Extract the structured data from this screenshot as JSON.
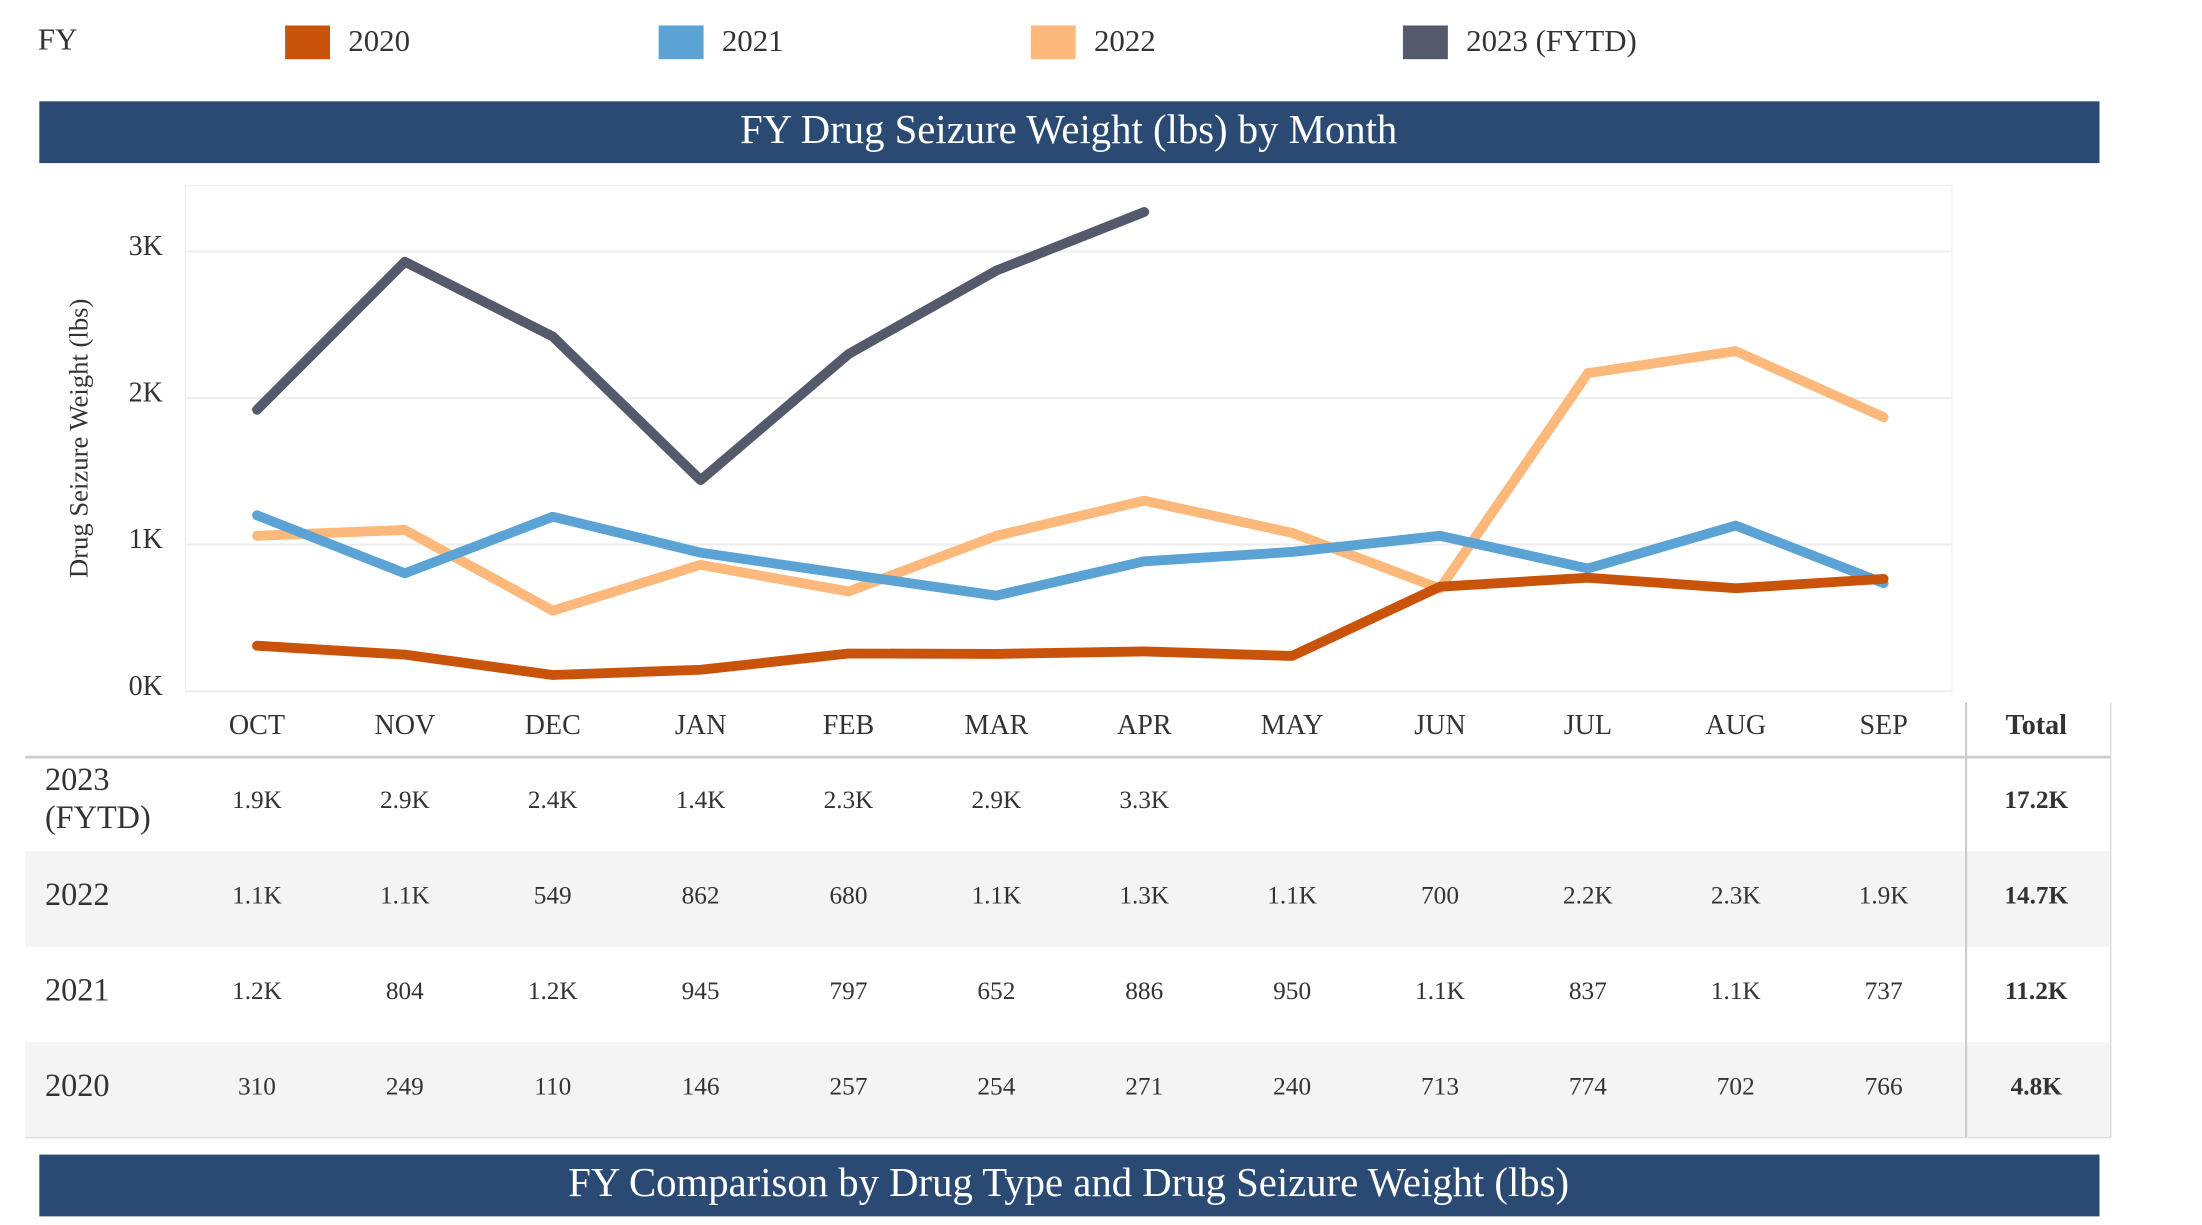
{
  "chart_data": {
    "type": "line",
    "title": "FY Drug Seizure Weight (lbs) by Month",
    "legend_title": "FY",
    "y_label": "Drug Seizure Weight (lbs)",
    "categories": [
      "OCT",
      "NOV",
      "DEC",
      "JAN",
      "FEB",
      "MAR",
      "APR",
      "MAY",
      "JUN",
      "JUL",
      "AUG",
      "SEP"
    ],
    "ylim": [
      0,
      3450
    ],
    "yticks": [
      {
        "value": 0,
        "label": "0K"
      },
      {
        "value": 1000,
        "label": "1K"
      },
      {
        "value": 2000,
        "label": "2K"
      },
      {
        "value": 3000,
        "label": "3K"
      }
    ],
    "grid": true,
    "total_label": "Total",
    "series": [
      {
        "name": "2020",
        "color": "#c9530b",
        "values": [
          310,
          249,
          110,
          146,
          257,
          254,
          271,
          240,
          713,
          774,
          702,
          766
        ],
        "value_labels": [
          "310",
          "249",
          "110",
          "146",
          "257",
          "254",
          "271",
          "240",
          "713",
          "774",
          "702",
          "766"
        ],
        "total": "4.8K"
      },
      {
        "name": "2021",
        "color": "#5ba3d5",
        "values": [
          1200,
          804,
          1190,
          945,
          797,
          652,
          886,
          950,
          1060,
          837,
          1130,
          737
        ],
        "value_labels": [
          "1.2K",
          "804",
          "1.2K",
          "945",
          "797",
          "652",
          "886",
          "950",
          "1.1K",
          "837",
          "1.1K",
          "737"
        ],
        "total": "11.2K"
      },
      {
        "name": "2022",
        "color": "#fdb97c",
        "values": [
          1060,
          1100,
          549,
          862,
          680,
          1060,
          1300,
          1080,
          700,
          2170,
          2320,
          1870
        ],
        "value_labels": [
          "1.1K",
          "1.1K",
          "549",
          "862",
          "680",
          "1.1K",
          "1.3K",
          "1.1K",
          "700",
          "2.2K",
          "2.3K",
          "1.9K"
        ],
        "total": "14.7K"
      },
      {
        "name": "2023 (FYTD)",
        "color": "#545a6b",
        "values": [
          1920,
          2930,
          2420,
          1440,
          2300,
          2870,
          3270,
          null,
          null,
          null,
          null,
          null
        ],
        "value_labels": [
          "1.9K",
          "2.9K",
          "2.4K",
          "1.4K",
          "2.3K",
          "2.9K",
          "3.3K",
          null,
          null,
          null,
          null,
          null
        ],
        "total": "17.2K"
      }
    ]
  },
  "next_section_title": "FY Comparison by Drug Type and Drug Seizure Weight (lbs)"
}
